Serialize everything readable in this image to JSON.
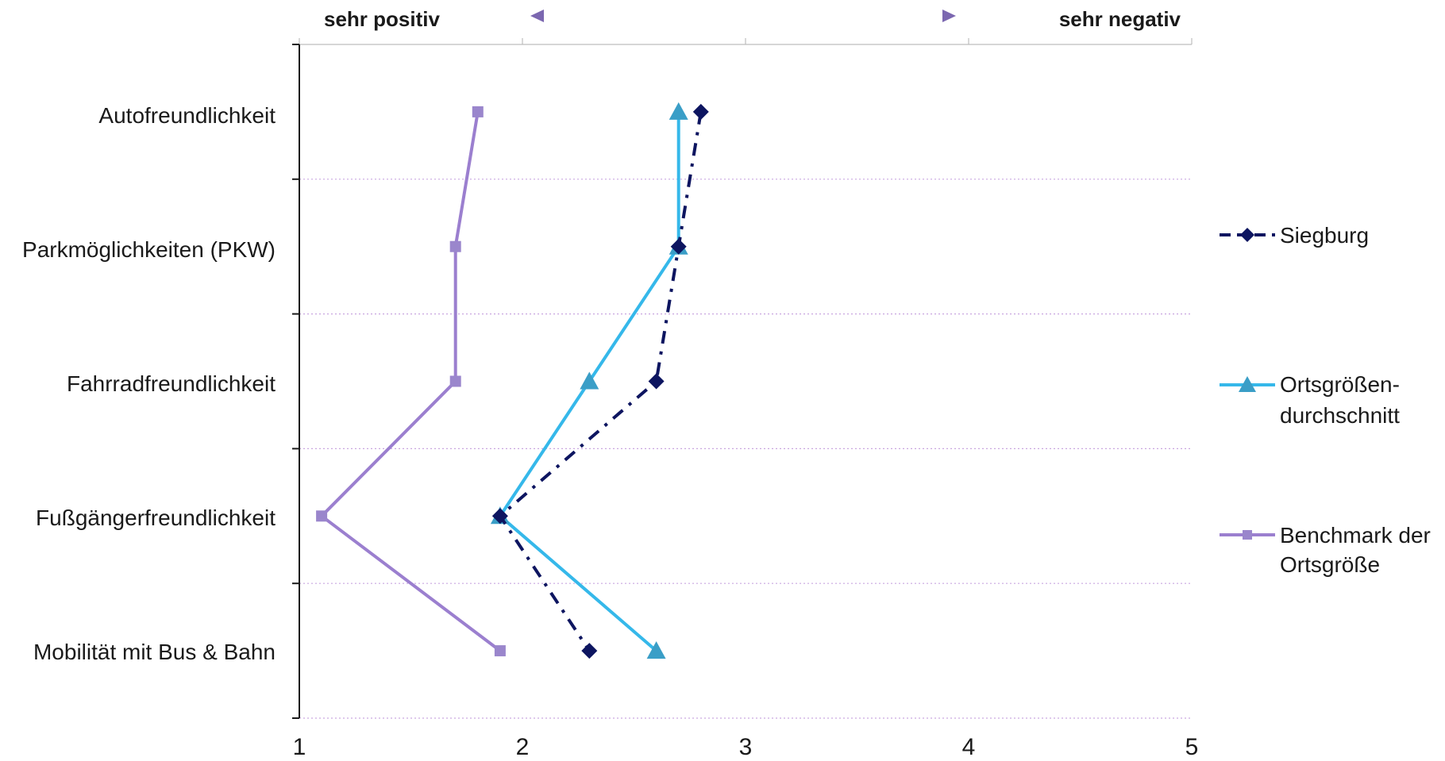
{
  "chart_data": {
    "type": "line",
    "orientation": "horizontal-values",
    "categories": [
      "Autofreundlichkeit",
      "Parkmöglichkeiten (PKW)",
      "Fahrradfreundlichkeit",
      "Fußgängerfreundlichkeit",
      "Mobilität mit Bus & Bahn"
    ],
    "xlim": [
      1,
      5
    ],
    "x_ticks": [
      "1",
      "2",
      "3",
      "4",
      "5"
    ],
    "top_label_left": "sehr positiv",
    "top_label_right": "sehr negativ",
    "grid": true,
    "legend_position": "right",
    "series": [
      {
        "name": "Siegburg",
        "color": "#0d1560",
        "line_style": "dash-dot",
        "marker": "diamond",
        "values": [
          2.8,
          2.7,
          2.6,
          1.9,
          2.3
        ]
      },
      {
        "name": "Ortsgrößen-durchschnitt",
        "name_lines": [
          "Ortsgrößen-",
          "durchschnitt"
        ],
        "color": "#35b8ea",
        "marker_color": "#3a9ec7",
        "line_style": "solid",
        "marker": "triangle",
        "values": [
          2.7,
          2.7,
          2.3,
          1.9,
          2.6
        ]
      },
      {
        "name": "Benchmark der Ortsgröße",
        "name_lines": [
          "Benchmark der",
          "Ortsgröße"
        ],
        "color": "#9b7fcf",
        "marker_color": "#9a86cc",
        "line_style": "solid",
        "marker": "square",
        "values": [
          1.8,
          1.7,
          1.7,
          1.1,
          1.9
        ]
      }
    ]
  }
}
